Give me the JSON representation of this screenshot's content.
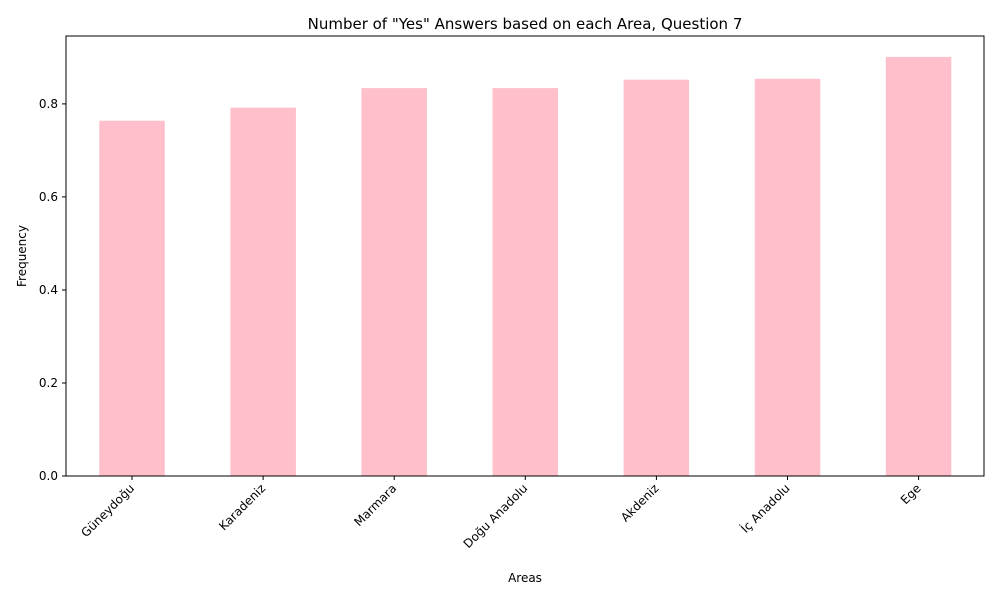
{
  "chart_data": {
    "type": "bar",
    "title": "Number of \"Yes\" Answers based on each Area, Question 7",
    "xlabel": "Areas",
    "ylabel": "Frequency",
    "categories": [
      "Güneydoğu",
      "Karadeniz",
      "Marmara",
      "Doğu Anadolu",
      "Akdeniz",
      "İç Anadolu",
      "Ege"
    ],
    "values": [
      0.764,
      0.792,
      0.834,
      0.834,
      0.852,
      0.854,
      0.901
    ],
    "ylim": [
      0,
      0.946
    ],
    "yticks": [
      0.0,
      0.2,
      0.4,
      0.6,
      0.8
    ],
    "ytick_labels": [
      "0.0",
      "0.2",
      "0.4",
      "0.6",
      "0.8"
    ],
    "grid": false,
    "bar_color": "#ffc0cb"
  }
}
